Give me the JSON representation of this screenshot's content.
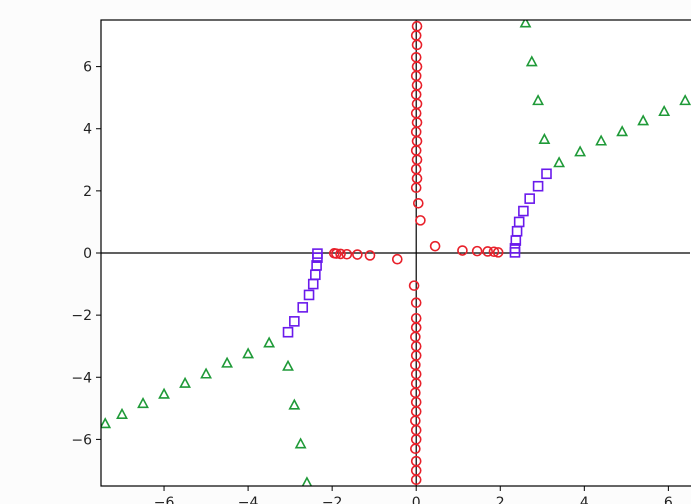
{
  "chart_data": {
    "type": "scatter",
    "title": "",
    "xlabel": "",
    "ylabel": "",
    "xlim": [
      -7.5,
      6.8
    ],
    "ylim": [
      -7.5,
      7.5
    ],
    "grid": false,
    "reference_lines": {
      "x": 0,
      "y": 0
    },
    "xticks": [
      -6,
      -4,
      -2,
      0,
      2,
      4,
      6
    ],
    "xtick_labels": [
      "−6",
      "−4",
      "−2",
      "0",
      "2",
      "4",
      "6"
    ],
    "yticks": [
      -6,
      -4,
      -2,
      0,
      2,
      4,
      6
    ],
    "ytick_labels": [
      "−6",
      "−4",
      "−2",
      "0",
      "2",
      "4",
      "6"
    ],
    "series": [
      {
        "marker": "circle",
        "color": "#e8202a",
        "points": [
          [
            0.0,
            -7.3
          ],
          [
            0.0,
            -7.0
          ],
          [
            0.0,
            -6.7
          ],
          [
            -0.02,
            -6.3
          ],
          [
            0.0,
            -6.0
          ],
          [
            0.0,
            -5.7
          ],
          [
            -0.02,
            -5.4
          ],
          [
            0.0,
            -5.1
          ],
          [
            0.0,
            -4.8
          ],
          [
            -0.02,
            -4.5
          ],
          [
            0.0,
            -4.2
          ],
          [
            0.0,
            -3.9
          ],
          [
            -0.02,
            -3.6
          ],
          [
            0.0,
            -3.3
          ],
          [
            0.0,
            -3.0
          ],
          [
            -0.02,
            -2.7
          ],
          [
            0.0,
            -2.4
          ],
          [
            0.0,
            -2.1
          ],
          [
            0.0,
            -1.6
          ],
          [
            -0.05,
            -1.05
          ],
          [
            -0.45,
            -0.2
          ],
          [
            -1.1,
            -0.08
          ],
          [
            -1.4,
            -0.05
          ],
          [
            -1.65,
            -0.04
          ],
          [
            -1.8,
            -0.03
          ],
          [
            -1.9,
            -0.02
          ],
          [
            -1.95,
            -0.01
          ],
          [
            0.02,
            7.3
          ],
          [
            0.0,
            7.0
          ],
          [
            0.02,
            6.7
          ],
          [
            0.0,
            6.3
          ],
          [
            0.02,
            6.0
          ],
          [
            0.0,
            5.7
          ],
          [
            0.02,
            5.4
          ],
          [
            0.0,
            5.1
          ],
          [
            0.02,
            4.8
          ],
          [
            0.0,
            4.5
          ],
          [
            0.02,
            4.2
          ],
          [
            0.0,
            3.9
          ],
          [
            0.02,
            3.6
          ],
          [
            0.0,
            3.3
          ],
          [
            0.02,
            3.0
          ],
          [
            0.0,
            2.7
          ],
          [
            0.02,
            2.4
          ],
          [
            0.0,
            2.1
          ],
          [
            0.05,
            1.6
          ],
          [
            0.1,
            1.05
          ],
          [
            0.45,
            0.22
          ],
          [
            1.1,
            0.08
          ],
          [
            1.45,
            0.06
          ],
          [
            1.7,
            0.05
          ],
          [
            1.85,
            0.04
          ],
          [
            1.95,
            0.02
          ]
        ]
      },
      {
        "marker": "square",
        "color": "#6a1aec",
        "points": [
          [
            -2.35,
            -0.02
          ],
          [
            -2.35,
            -0.15
          ],
          [
            -2.37,
            -0.4
          ],
          [
            -2.4,
            -0.7
          ],
          [
            -2.45,
            -1.0
          ],
          [
            -2.55,
            -1.35
          ],
          [
            -2.7,
            -1.75
          ],
          [
            -2.9,
            -2.2
          ],
          [
            -3.05,
            -2.55
          ],
          [
            2.35,
            0.02
          ],
          [
            2.35,
            0.15
          ],
          [
            2.37,
            0.4
          ],
          [
            2.4,
            0.7
          ],
          [
            2.45,
            1.0
          ],
          [
            2.55,
            1.35
          ],
          [
            2.7,
            1.75
          ],
          [
            2.9,
            2.15
          ],
          [
            3.1,
            2.55
          ]
        ]
      },
      {
        "marker": "triangle",
        "color": "#1f9a38",
        "points": [
          [
            -7.4,
            -5.5
          ],
          [
            -7.0,
            -5.2
          ],
          [
            -6.5,
            -4.85
          ],
          [
            -6.0,
            -4.55
          ],
          [
            -5.5,
            -4.2
          ],
          [
            -5.0,
            -3.9
          ],
          [
            -4.5,
            -3.55
          ],
          [
            -4.0,
            -3.25
          ],
          [
            -3.5,
            -2.9
          ],
          [
            -3.05,
            -3.65
          ],
          [
            -2.9,
            -4.9
          ],
          [
            -2.75,
            -6.15
          ],
          [
            -2.6,
            -7.4
          ],
          [
            2.6,
            7.4
          ],
          [
            2.75,
            6.15
          ],
          [
            2.9,
            4.9
          ],
          [
            3.05,
            3.65
          ],
          [
            3.4,
            2.9
          ],
          [
            3.9,
            3.25
          ],
          [
            4.4,
            3.6
          ],
          [
            4.9,
            3.9
          ],
          [
            5.4,
            4.25
          ],
          [
            5.9,
            4.55
          ],
          [
            6.4,
            4.9
          ]
        ]
      }
    ]
  }
}
